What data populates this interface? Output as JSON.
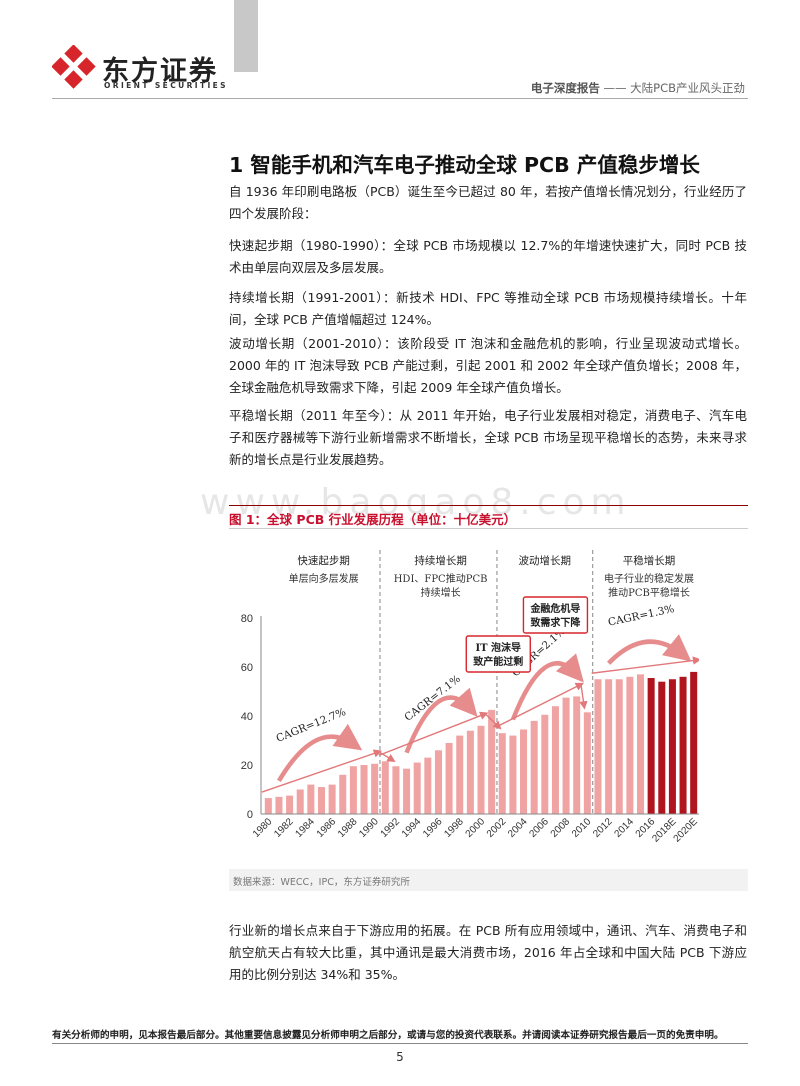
{
  "header": {
    "brand_cn": "东方证券",
    "brand_en": "ORIENT SECURITIES",
    "report_type": "电子深度报告",
    "separator": "——",
    "report_subject": "大陆PCB产业风头正劲"
  },
  "section": {
    "title": "1  智能手机和汽车电子推动全球 PCB 产值稳步增长"
  },
  "paragraphs": [
    "自 1936 年印刷电路板（PCB）诞生至今已超过 80 年，若按产值增长情况划分，行业经历了四个发展阶段：",
    "快速起步期（1980-1990）：全球 PCB 市场规模以 12.7%的年增速快速扩大，同时 PCB 技术由单层向双层及多层发展。",
    "持续增长期（1991-2001）：新技术 HDI、FPC 等推动全球 PCB 市场规模持续增长。十年间，全球 PCB 产值增幅超过 124%。",
    "波动增长期（2001-2010）：该阶段受 IT 泡沫和金融危机的影响，行业呈现波动式增长。2000 年的 IT 泡沫导致 PCB 产能过剩，引起 2001 和 2002 年全球产值负增长；2008 年，全球金融危机导致需求下降，引起 2009 年全球产值负增长。",
    "平稳增长期（2011 年至今）：从 2011 年开始，电子行业发展相对稳定，消费电子、汽车电子和医疗器械等下游行业新增需求不断增长，全球 PCB 市场呈现平稳增长的态势，未来寻求新的增长点是行业发展趋势。",
    "行业新的增长点来自于下游应用的拓展。在 PCB 所有应用领域中，通讯、汽车、消费电子和航空航天占有较大比重，其中通讯是最大消费市场，2016 年占全球和中国大陆 PCB 下游应用的比例分别达 34%和 35%。"
  ],
  "watermark": "www.baogao8.com",
  "figure": {
    "title": "图 1：全球 PCB 行业发展历程（单位：十亿美元）",
    "source": "数据来源：WECC，IPC，东方证券研究所"
  },
  "chart_data": {
    "type": "bar",
    "title": "",
    "xlabel": "",
    "ylabel": "",
    "ylim": [
      0,
      80
    ],
    "yticks": [
      0,
      20,
      40,
      60,
      80
    ],
    "categories": [
      "1980",
      "1981",
      "1982",
      "1983",
      "1984",
      "1985",
      "1986",
      "1987",
      "1988",
      "1989",
      "1990",
      "1991",
      "1992",
      "1993",
      "1994",
      "1995",
      "1996",
      "1997",
      "1998",
      "1999",
      "2000",
      "2001",
      "2002",
      "2003",
      "2004",
      "2005",
      "2006",
      "2007",
      "2008",
      "2009",
      "2010",
      "2011",
      "2012",
      "2013",
      "2014",
      "2015",
      "2016",
      "2017",
      "2018E",
      "2019E",
      "2020E"
    ],
    "tick_labels": [
      "1980",
      "1982",
      "1984",
      "1986",
      "1988",
      "1990",
      "1992",
      "1994",
      "1996",
      "1998",
      "2000",
      "2002",
      "2004",
      "2006",
      "2008",
      "2010",
      "2012",
      "2014",
      "2016",
      "2018E",
      "2020E"
    ],
    "values": [
      6.5,
      7,
      7.5,
      10,
      12,
      11,
      12,
      16,
      19.5,
      20,
      20.5,
      21.5,
      19.5,
      18.5,
      21,
      23,
      26,
      29,
      32,
      34,
      36,
      42.5,
      33,
      32,
      34.5,
      38,
      40.5,
      44,
      47.5,
      48,
      41.5,
      55,
      55,
      55,
      56,
      57,
      55.5,
      54,
      55,
      56,
      58
    ],
    "forecast_values": [
      null,
      null,
      null,
      null,
      null,
      null,
      null,
      null,
      null,
      null,
      null,
      null,
      null,
      null,
      null,
      null,
      null,
      null,
      null,
      null,
      null,
      null,
      null,
      null,
      null,
      null,
      null,
      null,
      null,
      null,
      null,
      null,
      null,
      null,
      null,
      null,
      null,
      null,
      null,
      null,
      null
    ],
    "highlight_from_index": 36,
    "colors": {
      "normal": "#f0a3a3",
      "highlight": "#b0141e",
      "arrow": "#e2787a",
      "divider": "#9a9a9a"
    },
    "phases": [
      {
        "name": "快速起步期",
        "desc": [
          "单层向多层发展"
        ],
        "cagr": "CAGR=12.7%"
      },
      {
        "name": "持续增长期",
        "desc": [
          "HDI、FPC推动PCB",
          "持续增长"
        ],
        "cagr": "CAGR=7.1%"
      },
      {
        "name": "波动增长期",
        "desc": [],
        "cagr": "CAGR=2.1%"
      },
      {
        "name": "平稳增长期",
        "desc": [
          "电子行业的稳定发展",
          "推动PCB平稳增长"
        ],
        "cagr": "CAGR=1.3%"
      }
    ],
    "annotations": [
      {
        "lines": [
          "IT 泡沫导",
          "致产能过剩"
        ]
      },
      {
        "lines": [
          "金融危机导",
          "致需求下降"
        ]
      }
    ]
  },
  "footer": {
    "disclaimer": "有关分析师的申明，见本报告最后部分。其他重要信息披露见分析师申明之后部分，或请与您的投资代表联系。并请阅读本证券研究报告最后一页的免责申明。",
    "page_number": "5"
  }
}
